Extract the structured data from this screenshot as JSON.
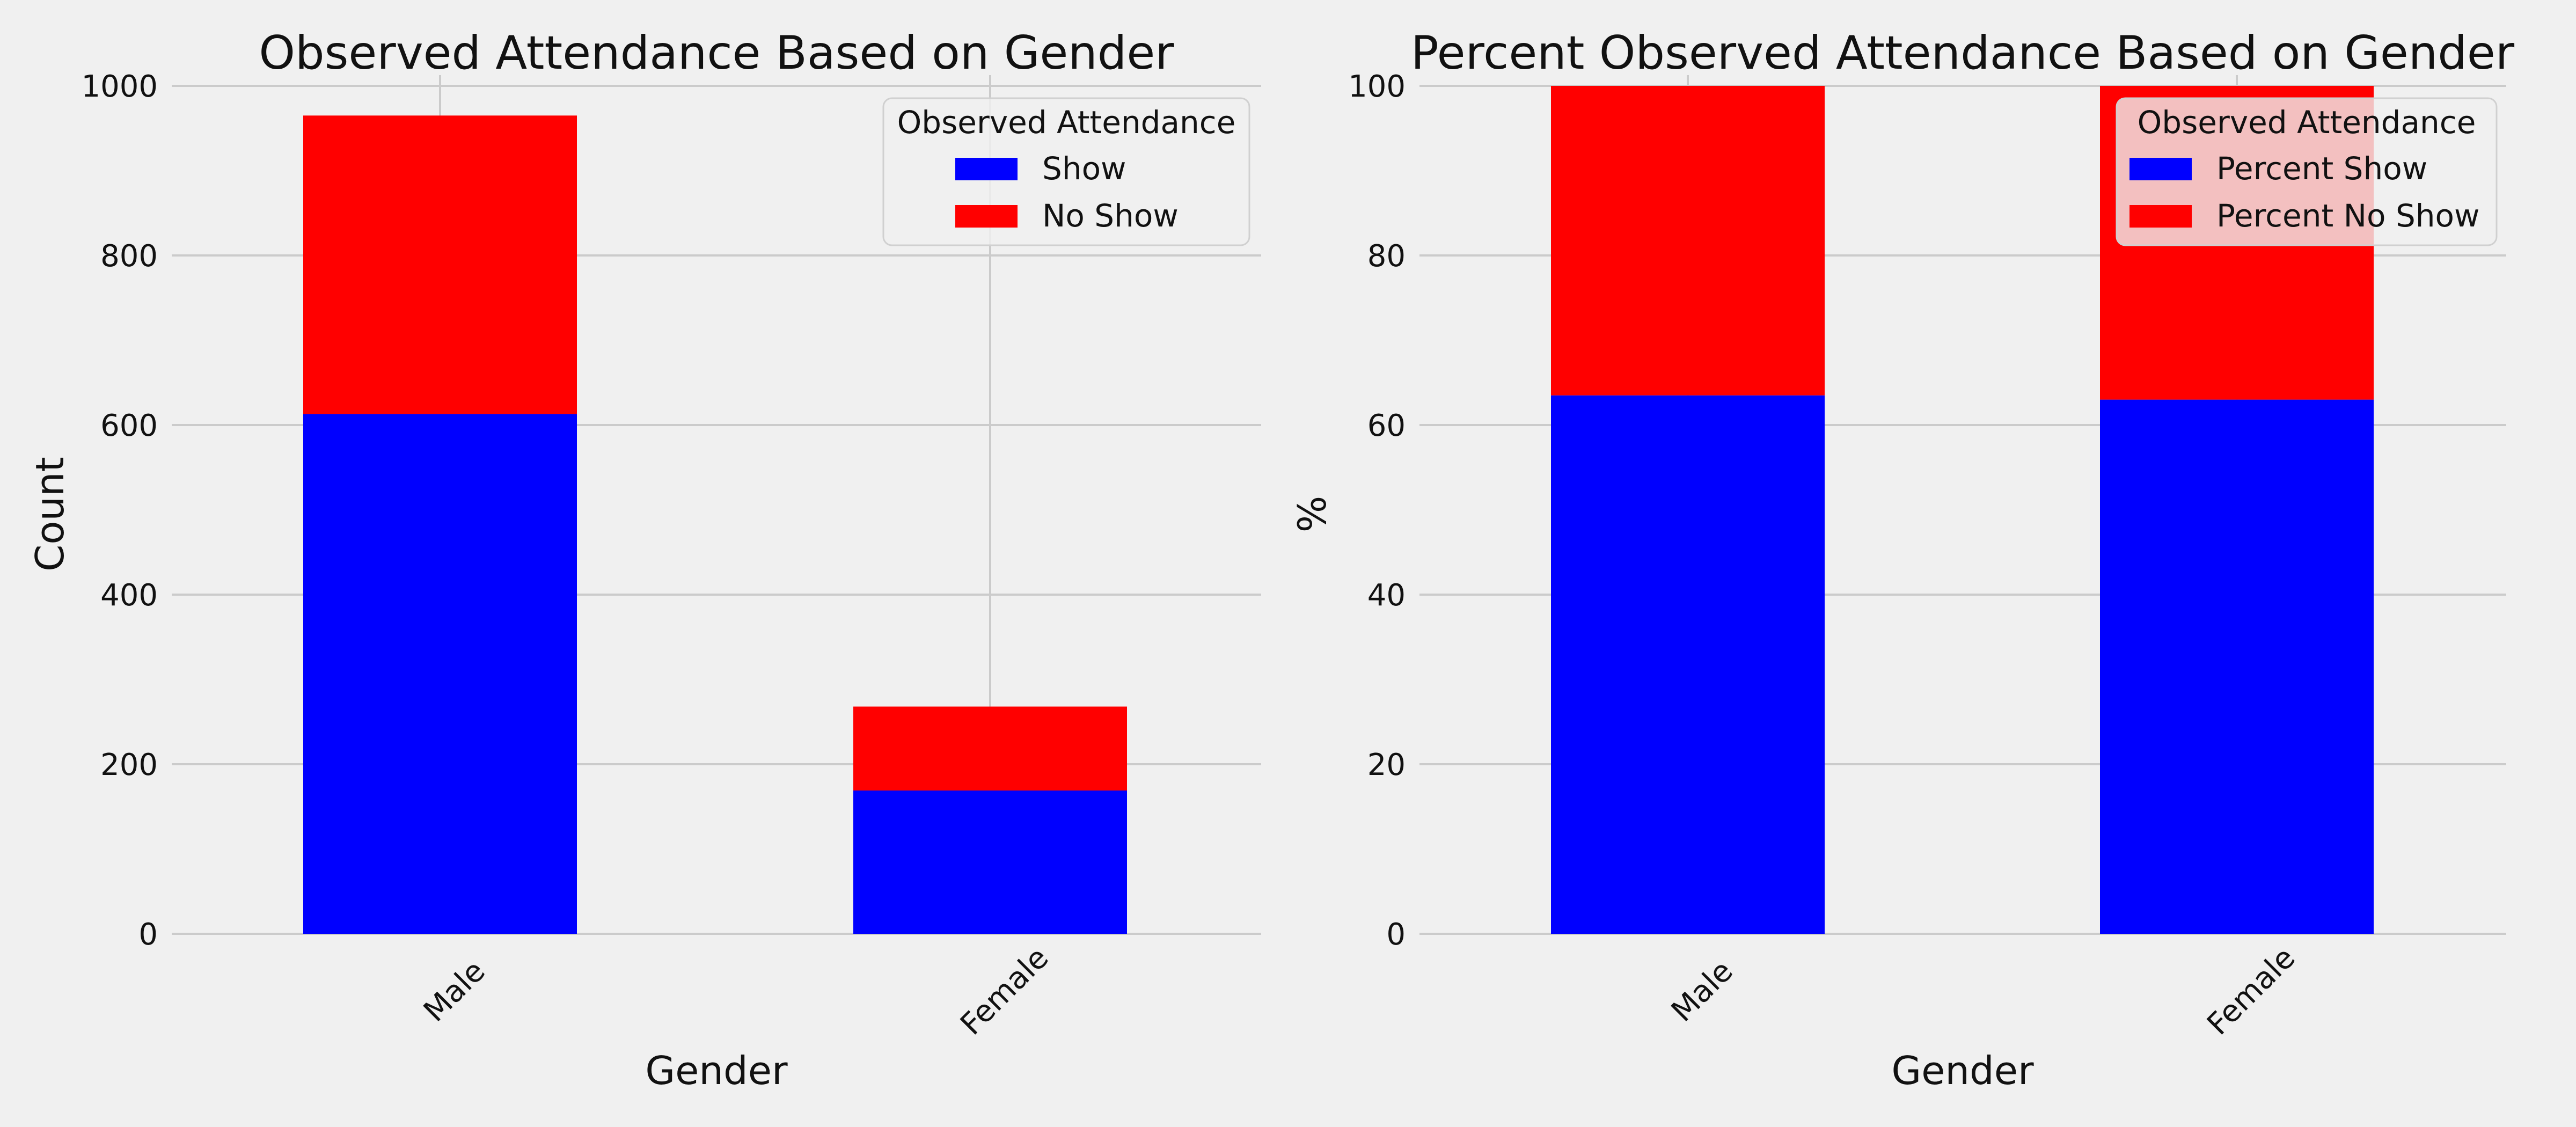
{
  "chart_data": [
    {
      "type": "bar",
      "stacked": true,
      "title": "Observed Attendance Based on Gender",
      "xlabel": "Gender",
      "ylabel": "Count",
      "categories": [
        "Male",
        "Female"
      ],
      "series": [
        {
          "name": "Show",
          "values": [
            613,
            169
          ]
        },
        {
          "name": "No Show",
          "values": [
            352,
            99
          ]
        }
      ],
      "ylim": [
        0,
        1000
      ],
      "yticks": [
        0,
        200,
        400,
        600,
        800,
        1000
      ],
      "grid": true,
      "legend": {
        "title": "Observed Attendance",
        "position": "top-right"
      },
      "colors": [
        "#0000ff",
        "#ff0000"
      ]
    },
    {
      "type": "bar",
      "stacked": true,
      "title": "Percent Observed Attendance Based on Gender",
      "xlabel": "Gender",
      "ylabel": "%",
      "categories": [
        "Male",
        "Female"
      ],
      "series": [
        {
          "name": "Percent Show",
          "values": [
            63.5,
            63.0
          ]
        },
        {
          "name": "Percent No Show",
          "values": [
            36.5,
            37.0
          ]
        }
      ],
      "ylim": [
        0,
        100
      ],
      "yticks": [
        0,
        20,
        40,
        60,
        80,
        100
      ],
      "grid": true,
      "legend": {
        "title": "Observed Attendance",
        "position": "top-right"
      },
      "colors": [
        "#0000ff",
        "#ff0000"
      ]
    }
  ]
}
